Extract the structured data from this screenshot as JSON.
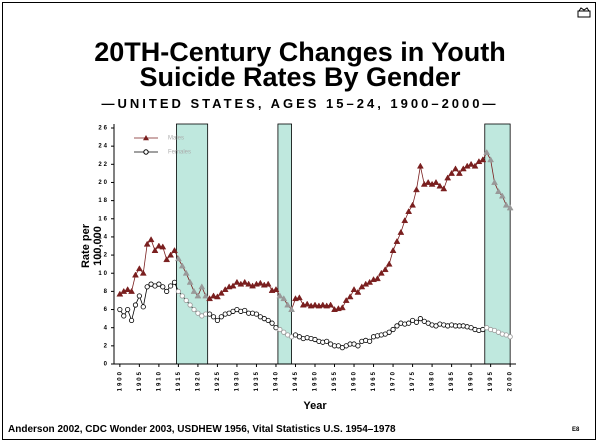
{
  "chart_data": {
    "type": "line",
    "title": "20TH-Century Changes in Youth Suicide Rates By Gender",
    "subtitle": "—UNITED STATES, AGES 15–24, 1900–2000—",
    "x_label": "Year",
    "y_label": "Rate per 100,000",
    "source": "Anderson 2002, CDC Wonder 2003, USDHEW 1956, Vital Statistics U.S. 1954–1978",
    "slide_code": "E8",
    "x": [
      1900,
      1901,
      1902,
      1903,
      1904,
      1905,
      1906,
      1907,
      1908,
      1909,
      1910,
      1911,
      1912,
      1913,
      1914,
      1915,
      1916,
      1917,
      1918,
      1919,
      1920,
      1921,
      1922,
      1923,
      1924,
      1925,
      1926,
      1927,
      1928,
      1929,
      1930,
      1931,
      1932,
      1933,
      1934,
      1935,
      1936,
      1937,
      1938,
      1939,
      1940,
      1941,
      1942,
      1943,
      1944,
      1945,
      1946,
      1947,
      1948,
      1949,
      1950,
      1951,
      1952,
      1953,
      1954,
      1955,
      1956,
      1957,
      1958,
      1959,
      1960,
      1961,
      1962,
      1963,
      1964,
      1965,
      1966,
      1967,
      1968,
      1969,
      1970,
      1971,
      1972,
      1973,
      1974,
      1975,
      1976,
      1977,
      1978,
      1979,
      1980,
      1981,
      1982,
      1983,
      1984,
      1985,
      1986,
      1987,
      1988,
      1989,
      1990,
      1991,
      1992,
      1993,
      1994,
      1995,
      1996,
      1997,
      1998,
      1999,
      2000
    ],
    "series": [
      {
        "name": "Males",
        "color": "#7a1f1f",
        "values": [
          7.7,
          8.0,
          8.2,
          8.0,
          9.8,
          10.5,
          10.0,
          13.2,
          13.7,
          12.5,
          13.0,
          12.9,
          11.5,
          12.0,
          12.5,
          11.6,
          10.8,
          10.0,
          9.0,
          8.0,
          7.5,
          8.5,
          7.5,
          7.2,
          7.5,
          7.4,
          7.8,
          8.2,
          8.5,
          8.6,
          9.0,
          8.8,
          9.0,
          8.8,
          8.6,
          8.8,
          8.9,
          8.7,
          8.8,
          8.1,
          8.2,
          7.5,
          7.2,
          6.5,
          6.0,
          7.2,
          7.3,
          6.5,
          6.6,
          6.4,
          6.5,
          6.4,
          6.5,
          6.4,
          6.5,
          6.0,
          6.1,
          6.2,
          7.0,
          7.4,
          8.2,
          7.9,
          8.5,
          8.8,
          9.0,
          9.3,
          9.4,
          10.0,
          10.4,
          11.0,
          12.5,
          13.5,
          14.5,
          15.8,
          16.8,
          17.5,
          19.2,
          21.8,
          19.8,
          20.0,
          19.8,
          20.0,
          19.6,
          19.3,
          20.5,
          21.0,
          21.5,
          21.0,
          21.5,
          21.8,
          22.0,
          21.8,
          22.3,
          22.5,
          23.3,
          22.5,
          20.0,
          19.0,
          18.5,
          17.5,
          17.2
        ]
      },
      {
        "name": "Females",
        "color": "#000000",
        "values": [
          6.0,
          5.3,
          6.0,
          4.8,
          6.5,
          7.5,
          6.3,
          8.5,
          8.8,
          8.6,
          8.8,
          8.5,
          8.0,
          8.6,
          9.0,
          8.0,
          7.5,
          7.0,
          6.5,
          6.0,
          5.6,
          5.3,
          5.5,
          5.5,
          5.2,
          4.8,
          5.2,
          5.5,
          5.6,
          5.8,
          6.0,
          5.8,
          5.9,
          5.6,
          5.6,
          5.5,
          5.2,
          5.0,
          4.8,
          4.5,
          4.0,
          3.8,
          3.5,
          3.2,
          3.0,
          3.2,
          3.0,
          2.8,
          2.9,
          2.8,
          2.7,
          2.5,
          2.4,
          2.5,
          2.2,
          2.0,
          2.0,
          1.8,
          2.0,
          2.2,
          2.2,
          2.0,
          2.5,
          2.6,
          2.5,
          3.0,
          3.1,
          3.2,
          3.3,
          3.5,
          3.8,
          4.2,
          4.5,
          4.4,
          4.5,
          4.8,
          4.6,
          5.0,
          4.7,
          4.5,
          4.3,
          4.2,
          4.4,
          4.3,
          4.2,
          4.3,
          4.2,
          4.2,
          4.2,
          4.1,
          4.0,
          3.8,
          3.7,
          3.8,
          4.0,
          3.8,
          3.7,
          3.5,
          3.3,
          3.2,
          3.0
        ]
      }
    ],
    "highlight_ranges": [
      [
        1914.5,
        1922.5
      ],
      [
        1940.5,
        1944
      ],
      [
        1993.5,
        2000
      ]
    ],
    "highlight_color": "#bfe8de",
    "xlim": [
      1898.5,
      2001.5
    ],
    "xticks": [
      1900,
      1905,
      1910,
      1915,
      1920,
      1925,
      1930,
      1935,
      1940,
      1945,
      1950,
      1955,
      1960,
      1965,
      1970,
      1975,
      1980,
      1985,
      1990,
      1995,
      2000
    ],
    "ylim": [
      0,
      26
    ],
    "yticks": [
      0,
      2,
      4,
      6,
      8,
      10,
      12,
      14,
      16,
      18,
      20,
      22,
      24,
      26
    ],
    "legend": "upper left",
    "grid": false
  }
}
